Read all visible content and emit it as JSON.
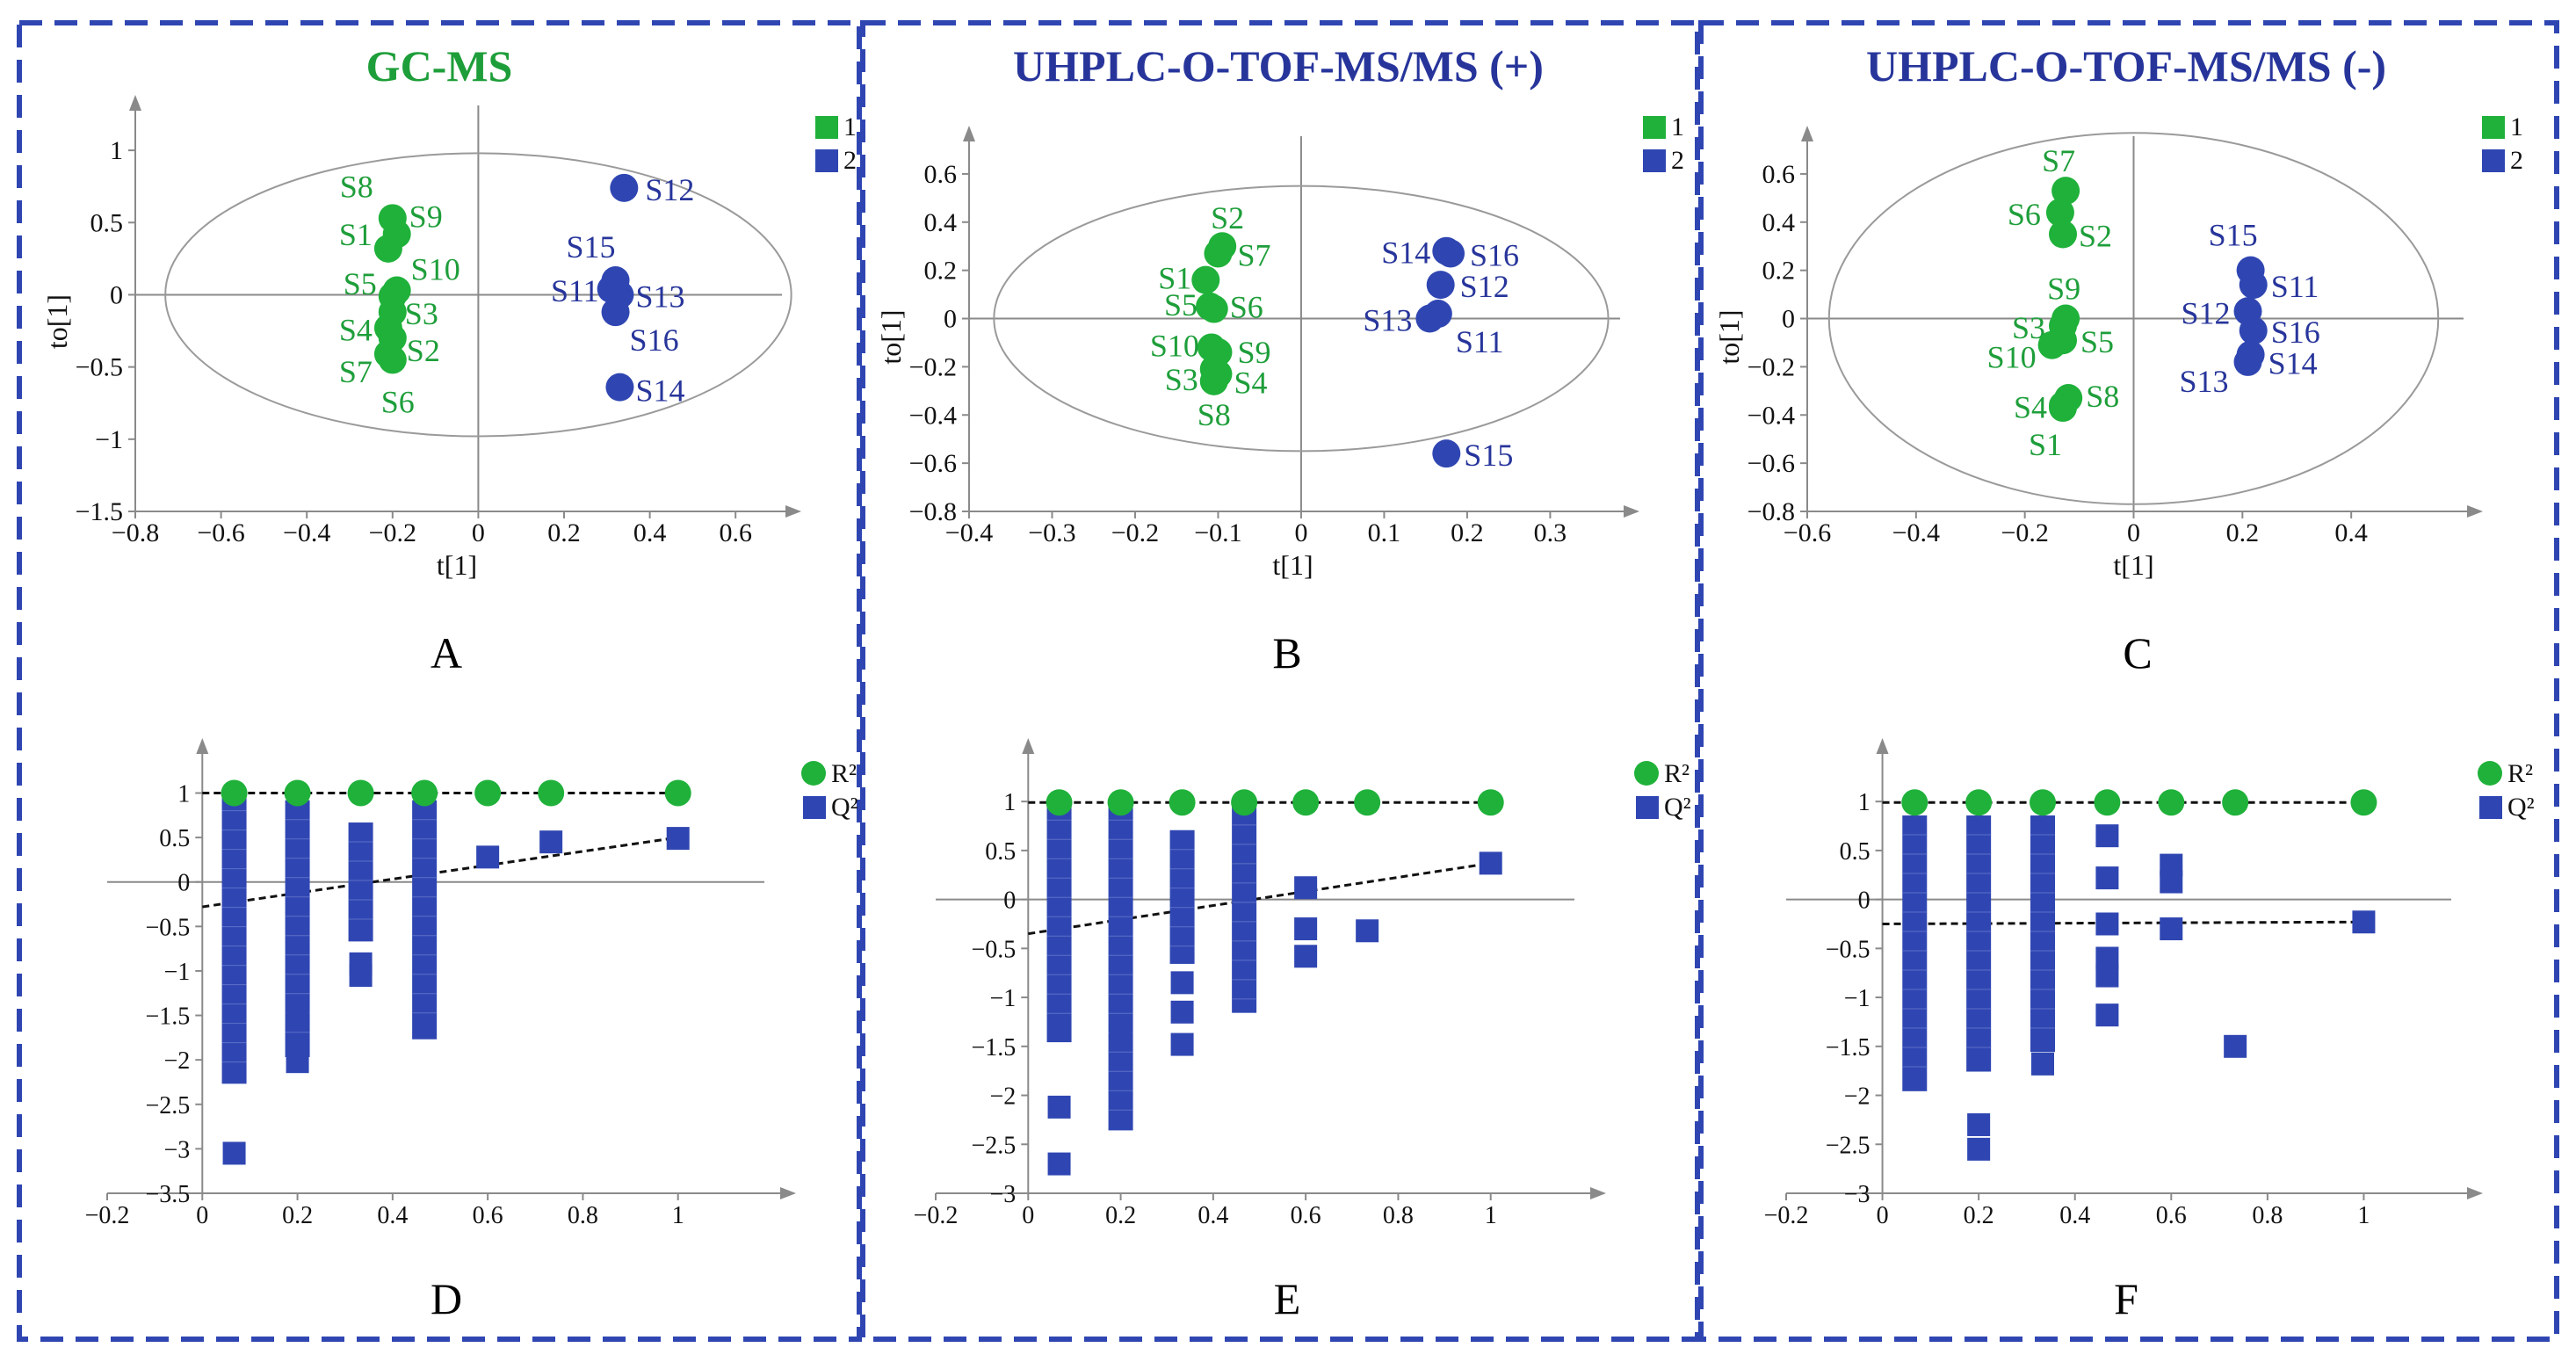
{
  "colors": {
    "green": "#1fb13a",
    "green_text": "#1e9e3a",
    "blue": "#2f46b2",
    "blue_text": "#27359b",
    "frame": "#2f46b2",
    "axis": "#8a8a8a",
    "ellipse": "#9a9a9a"
  },
  "chart_data": [
    {
      "id": "A",
      "panel_label": "A",
      "type": "scatter",
      "title": "GC-MS",
      "title_color": "green",
      "xlabel": "t[1]",
      "ylabel": "to[1]",
      "xlim": [
        -0.8,
        0.7
      ],
      "ylim": [
        -1.5,
        1.25
      ],
      "xticks": [
        -0.8,
        -0.6,
        -0.4,
        -0.2,
        0,
        0.2,
        0.4,
        0.6
      ],
      "yticks": [
        -1.5,
        -1,
        -0.5,
        0,
        0.5,
        1
      ],
      "xtick_labels": [
        "−0.8",
        "−0.6",
        "−0.4",
        "−0.2",
        "0",
        "0.2",
        "0.4",
        "0.6"
      ],
      "ytick_labels": [
        "−1.5",
        "−1",
        "−0.5",
        "0",
        "0.5",
        "1"
      ],
      "ellipse": {
        "rx": 0.73,
        "ry": 0.98
      },
      "legend": [
        {
          "label": "1",
          "color": "green"
        },
        {
          "label": "2",
          "color": "blue"
        }
      ],
      "series": [
        {
          "name": "1",
          "color": "green",
          "points": [
            {
              "label": "S8",
              "x": -0.2,
              "y": 0.53
            },
            {
              "label": "S9",
              "x": -0.19,
              "y": 0.42
            },
            {
              "label": "S1",
              "x": -0.21,
              "y": 0.32
            },
            {
              "label": "S10",
              "x": -0.19,
              "y": 0.03
            },
            {
              "label": "S5",
              "x": -0.2,
              "y": -0.01
            },
            {
              "label": "S3",
              "x": -0.2,
              "y": -0.12
            },
            {
              "label": "S4",
              "x": -0.21,
              "y": -0.23
            },
            {
              "label": "S2",
              "x": -0.2,
              "y": -0.3
            },
            {
              "label": "S7",
              "x": -0.21,
              "y": -0.41
            },
            {
              "label": "S6",
              "x": -0.2,
              "y": -0.45
            }
          ]
        },
        {
          "name": "2",
          "color": "blue",
          "points": [
            {
              "label": "S12",
              "x": 0.34,
              "y": 0.74
            },
            {
              "label": "S15",
              "x": 0.32,
              "y": 0.1
            },
            {
              "label": "S11",
              "x": 0.31,
              "y": 0.04
            },
            {
              "label": "S13",
              "x": 0.33,
              "y": 0.0
            },
            {
              "label": "S16",
              "x": 0.32,
              "y": -0.12
            },
            {
              "label": "S14",
              "x": 0.33,
              "y": -0.64
            }
          ]
        }
      ]
    },
    {
      "id": "B",
      "panel_label": "B",
      "type": "scatter",
      "title": "UHPLC-O-TOF-MS/MS (+)",
      "title_color": "blue",
      "xlabel": "t[1]",
      "ylabel": "to[1]",
      "xlim": [
        -0.4,
        0.38
      ],
      "ylim": [
        -0.8,
        0.72
      ],
      "xticks": [
        -0.4,
        -0.3,
        -0.2,
        -0.1,
        0,
        0.1,
        0.2,
        0.3
      ],
      "yticks": [
        -0.8,
        -0.6,
        -0.4,
        -0.2,
        0,
        0.2,
        0.4,
        0.6
      ],
      "xtick_labels": [
        "−0.4",
        "−0.3",
        "−0.2",
        "−0.1",
        "0",
        "0.1",
        "0.2",
        "0.3"
      ],
      "ytick_labels": [
        "−0.8",
        "−0.6",
        "−0.4",
        "−0.2",
        "0",
        "0.2",
        "0.4",
        "0.6"
      ],
      "ellipse": {
        "rx": 0.37,
        "ry": 0.55
      },
      "legend": [
        {
          "label": "1",
          "color": "green"
        },
        {
          "label": "2",
          "color": "blue"
        }
      ],
      "series": [
        {
          "name": "1",
          "color": "green",
          "points": [
            {
              "label": "S2",
              "x": -0.095,
              "y": 0.3
            },
            {
              "label": "S7",
              "x": -0.1,
              "y": 0.27
            },
            {
              "label": "S1",
              "x": -0.115,
              "y": 0.16
            },
            {
              "label": "S5",
              "x": -0.11,
              "y": 0.05
            },
            {
              "label": "S6",
              "x": -0.105,
              "y": 0.04
            },
            {
              "label": "S10",
              "x": -0.108,
              "y": -0.12
            },
            {
              "label": "S9",
              "x": -0.1,
              "y": -0.14
            },
            {
              "label": "S3",
              "x": -0.105,
              "y": -0.21
            },
            {
              "label": "S4",
              "x": -0.1,
              "y": -0.23
            },
            {
              "label": "S8",
              "x": -0.105,
              "y": -0.26
            }
          ]
        },
        {
          "name": "2",
          "color": "blue",
          "points": [
            {
              "label": "S14",
              "x": 0.175,
              "y": 0.28
            },
            {
              "label": "S16",
              "x": 0.18,
              "y": 0.27
            },
            {
              "label": "S12",
              "x": 0.168,
              "y": 0.14
            },
            {
              "label": "S13",
              "x": 0.155,
              "y": 0.0
            },
            {
              "label": "S11",
              "x": 0.165,
              "y": 0.02
            },
            {
              "label": "S15",
              "x": 0.175,
              "y": -0.56
            }
          ]
        }
      ]
    },
    {
      "id": "C",
      "panel_label": "C",
      "type": "scatter",
      "title": "UHPLC-O-TOF-MS/MS (-)",
      "title_color": "blue",
      "xlabel": "t[1]",
      "ylabel": "to[1]",
      "xlim": [
        -0.6,
        0.6
      ],
      "ylim": [
        -0.8,
        0.72
      ],
      "xticks": [
        -0.6,
        -0.4,
        -0.2,
        0,
        0.2,
        0.4
      ],
      "yticks": [
        -0.8,
        -0.6,
        -0.4,
        -0.2,
        0,
        0.2,
        0.4,
        0.6
      ],
      "xtick_labels": [
        "−0.6",
        "−0.4",
        "−0.2",
        "0",
        "0.2",
        "0.4"
      ],
      "ytick_labels": [
        "−0.8",
        "−0.6",
        "−0.4",
        "−0.2",
        "0",
        "0.2",
        "0.4",
        "0.6"
      ],
      "ellipse": {
        "rx": 0.56,
        "ry": 0.77
      },
      "legend": [
        {
          "label": "1",
          "color": "green"
        },
        {
          "label": "2",
          "color": "blue"
        }
      ],
      "series": [
        {
          "name": "1",
          "color": "green",
          "points": [
            {
              "label": "S7",
              "x": -0.125,
              "y": 0.53
            },
            {
              "label": "S6",
              "x": -0.135,
              "y": 0.44
            },
            {
              "label": "S2",
              "x": -0.13,
              "y": 0.35
            },
            {
              "label": "S9",
              "x": -0.125,
              "y": 0.0
            },
            {
              "label": "S3",
              "x": -0.13,
              "y": -0.03
            },
            {
              "label": "S5",
              "x": -0.13,
              "y": -0.09
            },
            {
              "label": "S10",
              "x": -0.15,
              "y": -0.11
            },
            {
              "label": "S8",
              "x": -0.12,
              "y": -0.33
            },
            {
              "label": "S4",
              "x": -0.13,
              "y": -0.36
            },
            {
              "label": "S1",
              "x": -0.13,
              "y": -0.37
            }
          ]
        },
        {
          "name": "2",
          "color": "blue",
          "points": [
            {
              "label": "S15",
              "x": 0.215,
              "y": 0.2
            },
            {
              "label": "S11",
              "x": 0.22,
              "y": 0.14
            },
            {
              "label": "S12",
              "x": 0.21,
              "y": 0.03
            },
            {
              "label": "S16",
              "x": 0.22,
              "y": -0.05
            },
            {
              "label": "S14",
              "x": 0.215,
              "y": -0.15
            },
            {
              "label": "S13",
              "x": 0.21,
              "y": -0.18
            }
          ]
        }
      ]
    },
    {
      "id": "D",
      "panel_label": "D",
      "type": "scatter",
      "xlim": [
        -0.2,
        1.2
      ],
      "ylim": [
        -3.5,
        1.4
      ],
      "xticks": [
        -0.2,
        0,
        0.2,
        0.4,
        0.6,
        0.8,
        1
      ],
      "yticks": [
        -3.5,
        -3,
        -2.5,
        -2,
        -1.5,
        -1,
        -0.5,
        0,
        0.5,
        1
      ],
      "xtick_labels": [
        "−0.2",
        "0",
        "0.2",
        "0.4",
        "0.6",
        "0.8",
        "1"
      ],
      "ytick_labels": [
        "−3.5",
        "−3",
        "−2.5",
        "−2",
        "−1.5",
        "−1",
        "−0.5",
        "0",
        "0.5",
        "1"
      ],
      "legend": [
        {
          "label": "R²",
          "color": "green"
        },
        {
          "label": "Q²",
          "color": "blue"
        }
      ],
      "r2_x": [
        0.067,
        0.2,
        0.333,
        0.467,
        0.6,
        0.733,
        1
      ],
      "r2_y": [
        1,
        1,
        1,
        1,
        1,
        1,
        1
      ],
      "r2_line": [
        [
          0,
          1
        ],
        [
          1,
          1
        ]
      ],
      "q2_line": [
        [
          0,
          -0.28
        ],
        [
          1,
          0.5
        ]
      ],
      "q2_ranges": [
        [
          0.067,
          -2.15,
          0.9
        ],
        [
          0.2,
          -1.85,
          0.8
        ],
        [
          0.333,
          -0.55,
          0.55
        ],
        [
          0.467,
          -1.65,
          0.8
        ]
      ],
      "q2_points": [
        [
          0.067,
          -3.05
        ],
        [
          0.2,
          -2.02
        ],
        [
          0.2,
          -1.5
        ],
        [
          0.333,
          -1.05
        ],
        [
          0.333,
          -0.92
        ],
        [
          0.6,
          0.28
        ],
        [
          0.733,
          0.45
        ],
        [
          1,
          0.49
        ]
      ]
    },
    {
      "id": "E",
      "panel_label": "E",
      "type": "scatter",
      "xlim": [
        -0.2,
        1.2
      ],
      "ylim": [
        -3,
        1.45
      ],
      "xticks": [
        -0.2,
        0,
        0.2,
        0.4,
        0.6,
        0.8,
        1
      ],
      "yticks": [
        -3,
        -2.5,
        -2,
        -1.5,
        -1,
        -0.5,
        0,
        0.5,
        1
      ],
      "xtick_labels": [
        "−0.2",
        "0",
        "0.2",
        "0.4",
        "0.6",
        "0.8",
        "1"
      ],
      "ytick_labels": [
        "−3",
        "−2.5",
        "−2",
        "−1.5",
        "−1",
        "−0.5",
        "0",
        "0.5",
        "1"
      ],
      "legend": [
        {
          "label": "R²",
          "color": "green"
        },
        {
          "label": "Q²",
          "color": "blue"
        }
      ],
      "r2_x": [
        0.067,
        0.2,
        0.333,
        0.467,
        0.6,
        0.733,
        1
      ],
      "r2_y": [
        0.99,
        0.99,
        0.99,
        0.99,
        0.99,
        0.99,
        0.99
      ],
      "r2_line": [
        [
          0,
          0.99
        ],
        [
          1,
          0.99
        ]
      ],
      "q2_line": [
        [
          0,
          -0.35
        ],
        [
          1,
          0.37
        ]
      ],
      "q2_ranges": [
        [
          0.067,
          -1.35,
          0.9
        ],
        [
          0.2,
          -2.25,
          0.9
        ],
        [
          0.333,
          -0.55,
          0.6
        ],
        [
          0.467,
          -1.05,
          0.85
        ]
      ],
      "q2_points": [
        [
          0.067,
          -2.12
        ],
        [
          0.067,
          -2.7
        ],
        [
          0.2,
          -1.35
        ],
        [
          0.333,
          -0.85
        ],
        [
          0.333,
          -1.15
        ],
        [
          0.333,
          -1.48
        ],
        [
          0.6,
          0.12
        ],
        [
          0.6,
          -0.3
        ],
        [
          0.6,
          -0.58
        ],
        [
          0.733,
          -0.32
        ],
        [
          1,
          0.37
        ]
      ]
    },
    {
      "id": "F",
      "panel_label": "F",
      "type": "scatter",
      "xlim": [
        -0.2,
        1.2
      ],
      "ylim": [
        -3,
        1.45
      ],
      "xticks": [
        -0.2,
        0,
        0.2,
        0.4,
        0.6,
        0.8,
        1
      ],
      "yticks": [
        -3,
        -2.5,
        -2,
        -1.5,
        -1,
        -0.5,
        0,
        0.5,
        1
      ],
      "xtick_labels": [
        "−0.2",
        "0",
        "0.2",
        "0.4",
        "0.6",
        "0.8",
        "1"
      ],
      "ytick_labels": [
        "−3",
        "−2.5",
        "−2",
        "−1.5",
        "−1",
        "−0.5",
        "0",
        "0.5",
        "1"
      ],
      "legend": [
        {
          "label": "R²",
          "color": "green"
        },
        {
          "label": "Q²",
          "color": "blue"
        }
      ],
      "r2_x": [
        0.067,
        0.2,
        0.333,
        0.467,
        0.6,
        0.733,
        1
      ],
      "r2_y": [
        0.99,
        0.99,
        0.99,
        0.99,
        0.99,
        0.99,
        0.99
      ],
      "r2_line": [
        [
          0,
          0.99
        ],
        [
          1,
          0.99
        ]
      ],
      "q2_line": [
        [
          0,
          -0.25
        ],
        [
          1,
          -0.23
        ]
      ],
      "q2_ranges": [
        [
          0.067,
          -1.85,
          0.75
        ],
        [
          0.2,
          -1.65,
          0.75
        ],
        [
          0.333,
          -1.45,
          0.75
        ]
      ],
      "q2_points": [
        [
          0.2,
          -2.3
        ],
        [
          0.2,
          -2.55
        ],
        [
          0.333,
          -1.68
        ],
        [
          0.467,
          0.65
        ],
        [
          0.467,
          0.22
        ],
        [
          0.467,
          -0.25
        ],
        [
          0.467,
          -0.6
        ],
        [
          0.467,
          -0.78
        ],
        [
          0.467,
          -1.18
        ],
        [
          0.6,
          0.35
        ],
        [
          0.6,
          0.18
        ],
        [
          0.6,
          -0.3
        ],
        [
          0.733,
          -1.5
        ],
        [
          1,
          -0.23
        ]
      ]
    }
  ]
}
